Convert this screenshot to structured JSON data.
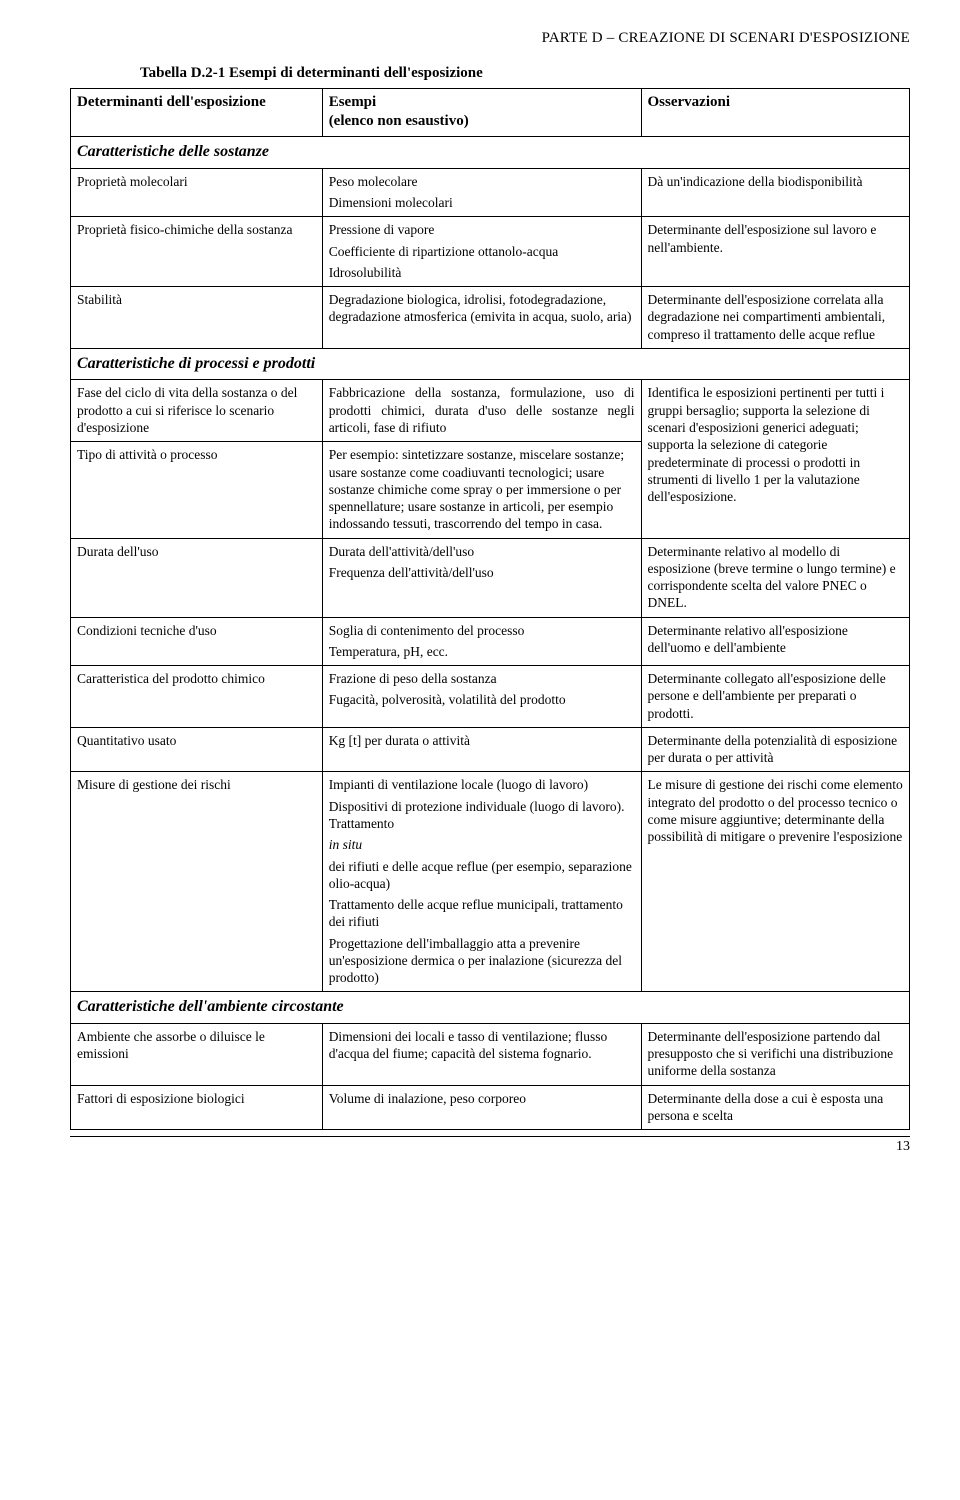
{
  "header": "PARTE D – CREAZIONE DI SCENARI D'ESPOSIZIONE",
  "caption": "Tabella D.2-1 Esempi di determinanti dell'esposizione",
  "cols": {
    "c1": "Determinanti dell'esposizione",
    "c2": "Esempi\n(elenco non esaustivo)",
    "c3": "Osservazioni"
  },
  "sec1": "Caratteristiche delle sostanze",
  "r1": {
    "a": "Proprietà molecolari",
    "b1": "Peso molecolare",
    "b2": "Dimensioni molecolari",
    "c": "Dà un'indicazione della biodisponibilità"
  },
  "r2": {
    "a": "Proprietà fisico-chimiche della sostanza",
    "b1": "Pressione di vapore",
    "b2": "Coefficiente di ripartizione ottanolo-acqua",
    "b3": "Idrosolubilità",
    "c": "Determinante dell'esposizione sul lavoro e nell'ambiente."
  },
  "r3": {
    "a": "Stabilità",
    "b": "Degradazione biologica, idrolisi, fotodegradazione, degradazione atmosferica (emivita in acqua, suolo, aria)",
    "c": "Determinante dell'esposizione correlata alla degradazione nei compartimenti ambientali, compreso il trattamento delle acque reflue"
  },
  "sec2": "Caratteristiche di processi e prodotti",
  "r4": {
    "a": "Fase del ciclo di vita della sostanza o del prodotto a cui si riferisce lo scenario d'esposizione",
    "b": "Fabbricazione della sostanza, formulazione, uso di prodotti chimici, durata d'uso delle sostanze negli articoli, fase di rifiuto",
    "c": "Identifica le esposizioni pertinenti per tutti i gruppi bersaglio; supporta la selezione di scenari d'esposizioni generici adeguati; supporta la selezione di categorie predeterminate di processi o prodotti in strumenti di livello 1 per la valutazione dell'esposizione."
  },
  "r5": {
    "a": "Tipo di attività o processo",
    "b": "Per esempio: sintetizzare sostanze, miscelare sostanze; usare sostanze come coadiuvanti tecnologici; usare sostanze chimiche come spray o per immersione o per spennellature; usare sostanze in articoli, per esempio indossando tessuti, trascorrendo del tempo in casa."
  },
  "r6": {
    "a": "Durata dell'uso",
    "b1": "Durata dell'attività/dell'uso",
    "b2": "Frequenza dell'attività/dell'uso",
    "c": "Determinante relativo al modello di esposizione (breve termine o lungo termine) e corrispondente scelta del valore PNEC o DNEL."
  },
  "r7": {
    "a": "Condizioni tecniche d'uso",
    "b1": "Soglia di contenimento del processo",
    "b2": " Temperatura, pH, ecc.",
    "c": "Determinante relativo all'esposizione dell'uomo e dell'ambiente"
  },
  "r8": {
    "a": "Caratteristica del prodotto chimico",
    "b1": "Frazione di peso della sostanza",
    "b2": "Fugacità, polverosità, volatilità del prodotto",
    "c": "Determinante collegato all'esposizione delle persone e dell'ambiente per preparati o prodotti."
  },
  "r9": {
    "a": "Quantitativo usato",
    "b": "Kg [t] per durata o attività",
    "c": "Determinante della potenzialità di esposizione per durata o per attività"
  },
  "r10": {
    "a": "Misure di gestione dei rischi",
    "b1": "Impianti di ventilazione locale (luogo di lavoro)",
    "b2a": "Dispositivi di protezione individuale (luogo di lavoro). Trattamento ",
    "b2i": "in situ",
    "b2b": " dei rifiuti e delle acque reflue (per esempio, separazione olio-acqua)",
    "b3": "Trattamento delle acque reflue municipali, trattamento dei rifiuti",
    "b4": "Progettazione dell'imballaggio atta a prevenire un'esposizione dermica o per inalazione (sicurezza del prodotto)",
    "c": "Le misure di gestione dei rischi come elemento integrato del prodotto o del processo tecnico o come misure aggiuntive; determinante della possibilità di mitigare o prevenire l'esposizione"
  },
  "sec3": "Caratteristiche dell'ambiente circostante",
  "r11": {
    "a": "Ambiente che assorbe o diluisce le emissioni",
    "b": "Dimensioni dei locali e tasso di ventilazione; flusso d'acqua del fiume; capacità del sistema fognario.",
    "c": "Determinante dell'esposizione partendo dal presupposto che si verifichi una distribuzione uniforme della sostanza"
  },
  "r12": {
    "a": "Fattori di esposizione biologici",
    "b": "Volume di inalazione, peso corporeo",
    "c": "Determinante della dose a cui è esposta una persona e scelta"
  },
  "pagenum": "13"
}
